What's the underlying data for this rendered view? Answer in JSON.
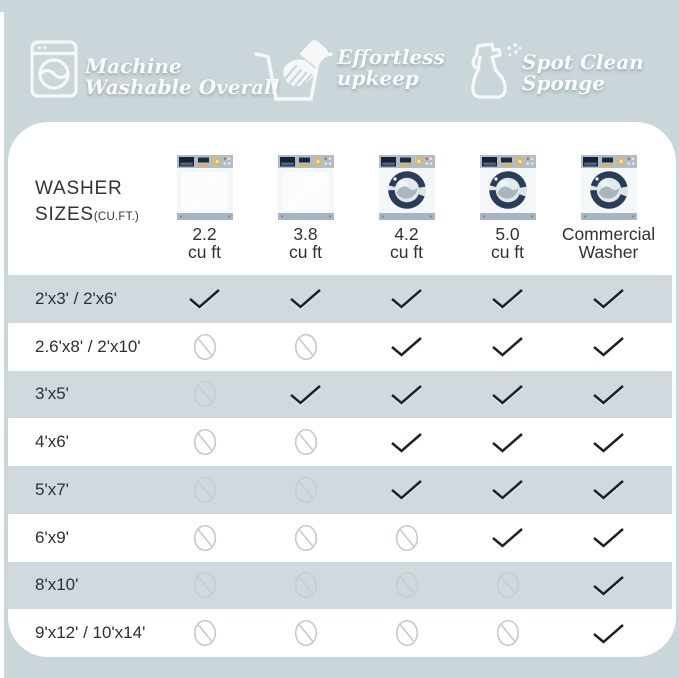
{
  "theme": {
    "background": "#cbd6da",
    "card_background": "#ffffff",
    "row_shade": "#d0dade",
    "check_color": "#1b222c",
    "no_symbol_color": "#c7cccf",
    "header_text_color": "#fafbfb"
  },
  "features": [
    {
      "icon": "washing-machine-icon",
      "line1": "Machine",
      "line2": "Washable Overall"
    },
    {
      "icon": "hand-wash-icon",
      "line1": "Effortless",
      "line2": "upkeep"
    },
    {
      "icon": "spray-bottle-icon",
      "line1": "Spot Clean",
      "line2": "Sponge"
    }
  ],
  "table": {
    "corner_title_line1": "WASHER",
    "corner_title_line2": "SIZES",
    "corner_title_suffix": "(CU.FT.)",
    "columns": [
      {
        "washer": "top-load-washer-image",
        "label_line1": "2.2",
        "label_line2": "cu ft"
      },
      {
        "washer": "top-load-washer-image",
        "label_line1": "3.8",
        "label_line2": "cu ft"
      },
      {
        "washer": "front-load-washer-image",
        "label_line1": "4.2",
        "label_line2": "cu ft"
      },
      {
        "washer": "front-load-washer-image",
        "label_line1": "5.0",
        "label_line2": "cu ft"
      },
      {
        "washer": "front-load-washer-image",
        "label_line1": "Commercial",
        "label_line2": "Washer"
      }
    ],
    "marks": {
      "yes": "check-icon",
      "no": "not-allowed-icon"
    },
    "rows": [
      {
        "label": "2'x3'  /  2'x6'",
        "cells": [
          "yes",
          "yes",
          "yes",
          "yes",
          "yes"
        ]
      },
      {
        "label": "2.6'x8' / 2'x10'",
        "cells": [
          "no",
          "no",
          "yes",
          "yes",
          "yes"
        ]
      },
      {
        "label": "3'x5'",
        "cells": [
          "no",
          "yes",
          "yes",
          "yes",
          "yes"
        ]
      },
      {
        "label": "4'x6'",
        "cells": [
          "no",
          "no",
          "yes",
          "yes",
          "yes"
        ]
      },
      {
        "label": "5'x7'",
        "cells": [
          "no",
          "no",
          "yes",
          "yes",
          "yes"
        ]
      },
      {
        "label": "6'x9'",
        "cells": [
          "no",
          "no",
          "no",
          "yes",
          "yes"
        ]
      },
      {
        "label": "8'x10'",
        "cells": [
          "no",
          "no",
          "no",
          "no",
          "yes"
        ]
      },
      {
        "label": "9'x12' / 10'x14'",
        "cells": [
          "no",
          "no",
          "no",
          "no",
          "yes"
        ]
      }
    ]
  }
}
